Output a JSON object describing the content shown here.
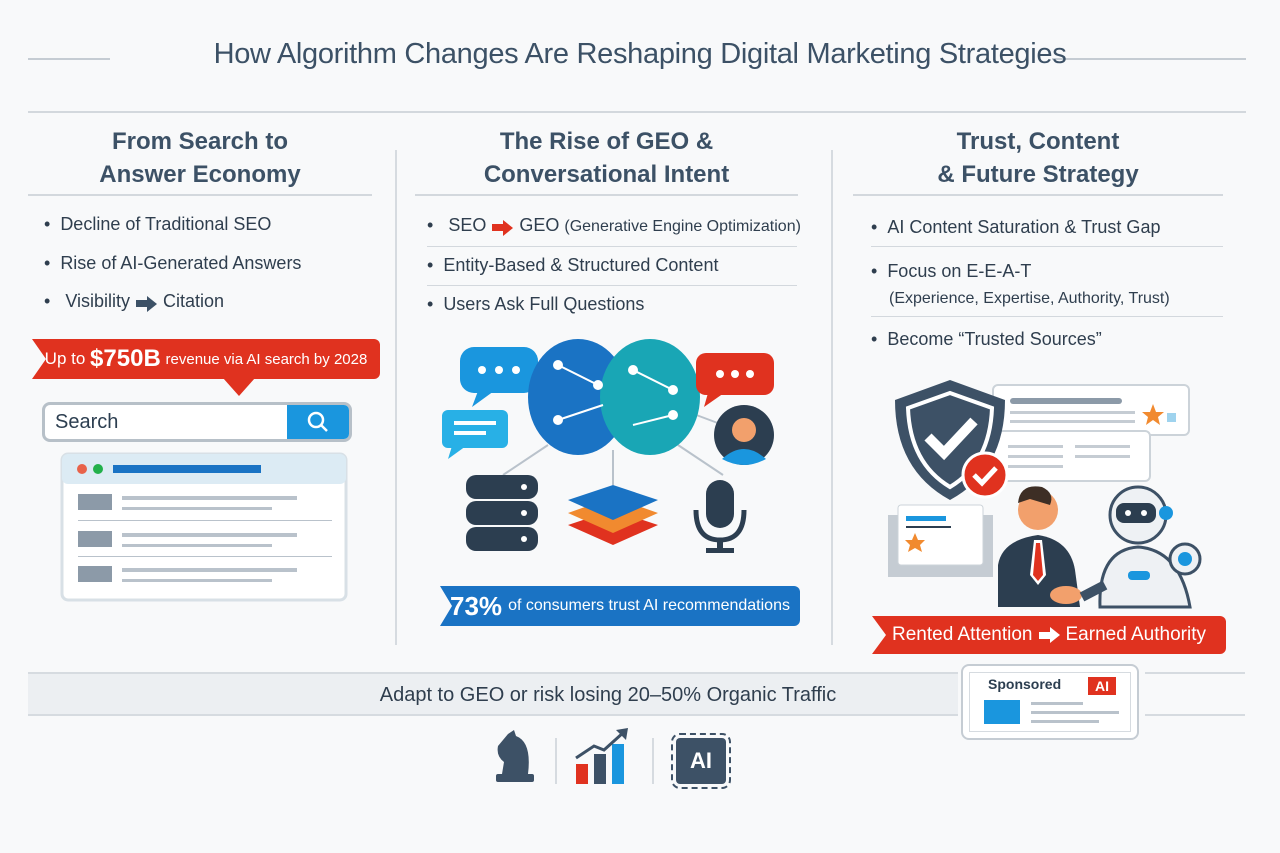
{
  "title": "How Algorithm Changes Are Reshaping Digital Marketing Strategies",
  "columns": [
    {
      "heading_line1": "From Search to",
      "heading_line2": "Answer Economy",
      "bullets": [
        "Decline of Traditional SEO",
        "Rise of AI-Generated Answers"
      ],
      "visibility_from": "Visibility",
      "visibility_to": "Citation",
      "ribbon": {
        "prefix": "Up to",
        "amount": "$750B",
        "suffix": "revenue via AI search by 2028"
      },
      "search_placeholder": "Search"
    },
    {
      "heading_line1": "The Rise of GEO &",
      "heading_line2": "Conversational Intent",
      "geo_from": "SEO",
      "geo_to": "GEO",
      "geo_note": "(Generative Engine Optimization)",
      "bullets": [
        "Entity-Based & Structured Content",
        "Users Ask Full Questions"
      ],
      "stat": {
        "value": "73%",
        "text": "of consumers trust AI recommendations"
      }
    },
    {
      "heading_line1": "Trust, Content",
      "heading_line2": "& Future Strategy",
      "bullets": [
        "AI Content Saturation & Trust Gap",
        "Focus on E-E-A-T",
        "Become “Trusted Sources”"
      ],
      "eeat_detail": "(Experience, Expertise, Authority, Trust)",
      "ribbon_from": "Rented Attention",
      "ribbon_to": "Earned Authority"
    }
  ],
  "footer": {
    "text": "Adapt to GEO or risk losing 20–50% Organic Traffic",
    "sponsored_label": "Sponsored",
    "ai_badge": "AI",
    "chip_label": "AI"
  },
  "colors": {
    "accent_red": "#e0321f",
    "accent_blue": "#1a73c4",
    "text": "#3c5166"
  },
  "icons": [
    "search-icon",
    "chat-bubble-icon",
    "brain-icon",
    "user-avatar-icon",
    "database-icon",
    "layers-icon",
    "microphone-icon",
    "shield-check-icon",
    "robot-icon",
    "handshake-icon",
    "chess-knight-icon",
    "growth-chart-icon",
    "ai-chip-icon"
  ]
}
